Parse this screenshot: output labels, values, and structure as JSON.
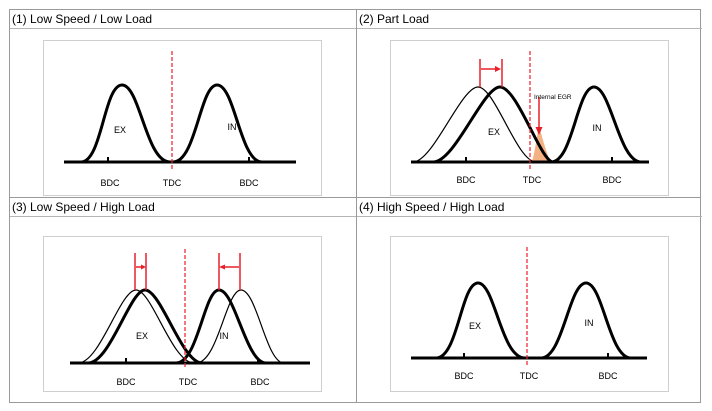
{
  "panels": [
    {
      "title": "(1) Low Speed / Low Load",
      "ex": "EX",
      "in": "IN",
      "bdc1": "BDC",
      "tdc": "TDC",
      "bdc2": "BDC"
    },
    {
      "title": "(2) Part Load",
      "ex": "EX",
      "in": "IN",
      "bdc1": "BDC",
      "tdc": "TDC",
      "bdc2": "BDC",
      "annotation": "Internal EGR"
    },
    {
      "title": "(3) Low Speed / High Load",
      "ex": "EX",
      "in": "IN",
      "bdc1": "BDC",
      "tdc": "TDC",
      "bdc2": "BDC"
    },
    {
      "title": "(4) High Speed / High Load",
      "ex": "EX",
      "in": "IN",
      "bdc1": "BDC",
      "tdc": "TDC",
      "bdc2": "BDC"
    }
  ],
  "colors": {
    "tdc_line": "#e8202a",
    "egr_fill": "#f4b183",
    "arrow": "#e8202a"
  }
}
